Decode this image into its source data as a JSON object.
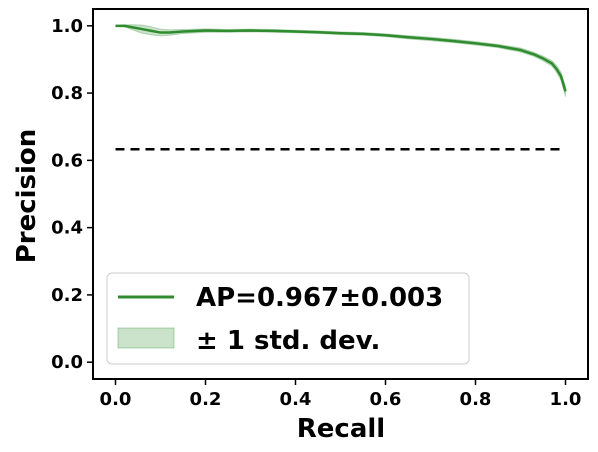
{
  "chart_data": {
    "type": "line",
    "xlabel": "Recall",
    "ylabel": "Precision",
    "xlim": [
      -0.05,
      1.05
    ],
    "ylim": [
      -0.05,
      1.05
    ],
    "x_ticks": [
      "0.0",
      "0.2",
      "0.4",
      "0.6",
      "0.8",
      "1.0"
    ],
    "y_ticks": [
      "0.0",
      "0.2",
      "0.4",
      "0.6",
      "0.8",
      "1.0"
    ],
    "grid": false,
    "legend_position": "lower-left",
    "series": [
      {
        "name": "AP=0.967±0.003",
        "color": "#2e8b2e",
        "x": [
          0.0,
          0.02,
          0.04,
          0.06,
          0.08,
          0.1,
          0.12,
          0.15,
          0.2,
          0.25,
          0.3,
          0.35,
          0.4,
          0.45,
          0.5,
          0.55,
          0.6,
          0.65,
          0.7,
          0.75,
          0.8,
          0.85,
          0.9,
          0.93,
          0.95,
          0.97,
          0.98,
          0.99,
          1.0
        ],
        "y": [
          1.0,
          1.0,
          0.995,
          0.99,
          0.985,
          0.98,
          0.98,
          0.983,
          0.986,
          0.985,
          0.986,
          0.985,
          0.983,
          0.981,
          0.978,
          0.976,
          0.972,
          0.966,
          0.961,
          0.955,
          0.948,
          0.94,
          0.928,
          0.915,
          0.903,
          0.888,
          0.872,
          0.85,
          0.805
        ],
        "std": [
          0.0,
          0.003,
          0.008,
          0.012,
          0.012,
          0.01,
          0.008,
          0.006,
          0.005,
          0.004,
          0.004,
          0.004,
          0.004,
          0.004,
          0.004,
          0.004,
          0.004,
          0.005,
          0.005,
          0.005,
          0.005,
          0.005,
          0.006,
          0.006,
          0.007,
          0.008,
          0.01,
          0.012,
          0.015
        ]
      }
    ],
    "band_label": "± 1 std. dev.",
    "band_color": "#2e8b2e",
    "baseline": {
      "y": 0.633,
      "x": [
        0.0,
        1.0
      ],
      "color": "#000000",
      "style": "dashed"
    }
  }
}
